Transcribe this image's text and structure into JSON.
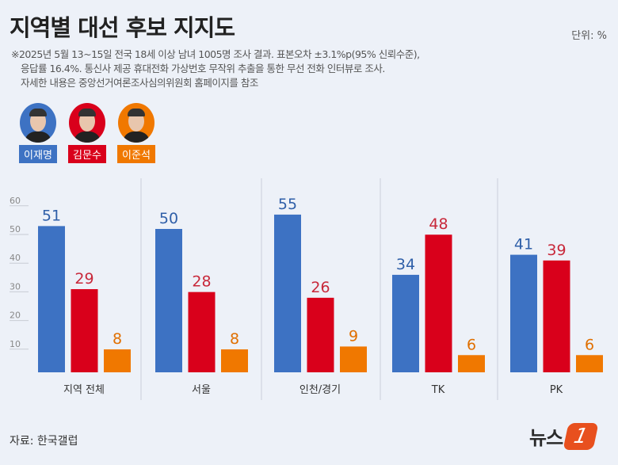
{
  "title": "지역별 대선 후보 지지도",
  "unit": "단위: %",
  "notes": [
    "※2025년 5월 13~15일 전국 18세 이상 남녀 1005명 조사 결과. 표본오차 ±3.1%p(95% 신뢰수준),",
    "응답률 16.4%. 통신사 제공 휴대전화 가상번호 무작위 추출을 통한 무선 전화 인터뷰로 조사.",
    "자세한 내용은 중앙선거여론조사심의위원회 홈페이지를 참조"
  ],
  "source": "자료: 한국갤럽",
  "logo": "뉴스1",
  "logo_text": "뉴스",
  "logo_mark": "1",
  "chart_data": {
    "type": "bar",
    "categories": [
      "지역 전체",
      "서울",
      "인천/경기",
      "TK",
      "PK"
    ],
    "series": [
      {
        "name": "이재명",
        "color": "#3d72c3",
        "values": [
          51,
          50,
          55,
          34,
          41
        ]
      },
      {
        "name": "김문수",
        "color": "#d9001b",
        "values": [
          29,
          28,
          26,
          48,
          39
        ]
      },
      {
        "name": "이준석",
        "color": "#f07800",
        "values": [
          8,
          8,
          9,
          6,
          6
        ]
      }
    ],
    "label_colors": [
      "#2f5fa8",
      "#c8283a",
      "#e06f00"
    ],
    "yticks": [
      10,
      20,
      30,
      40,
      50,
      60
    ],
    "ylim": [
      0,
      60
    ],
    "grid": false,
    "legend": "top-left"
  }
}
